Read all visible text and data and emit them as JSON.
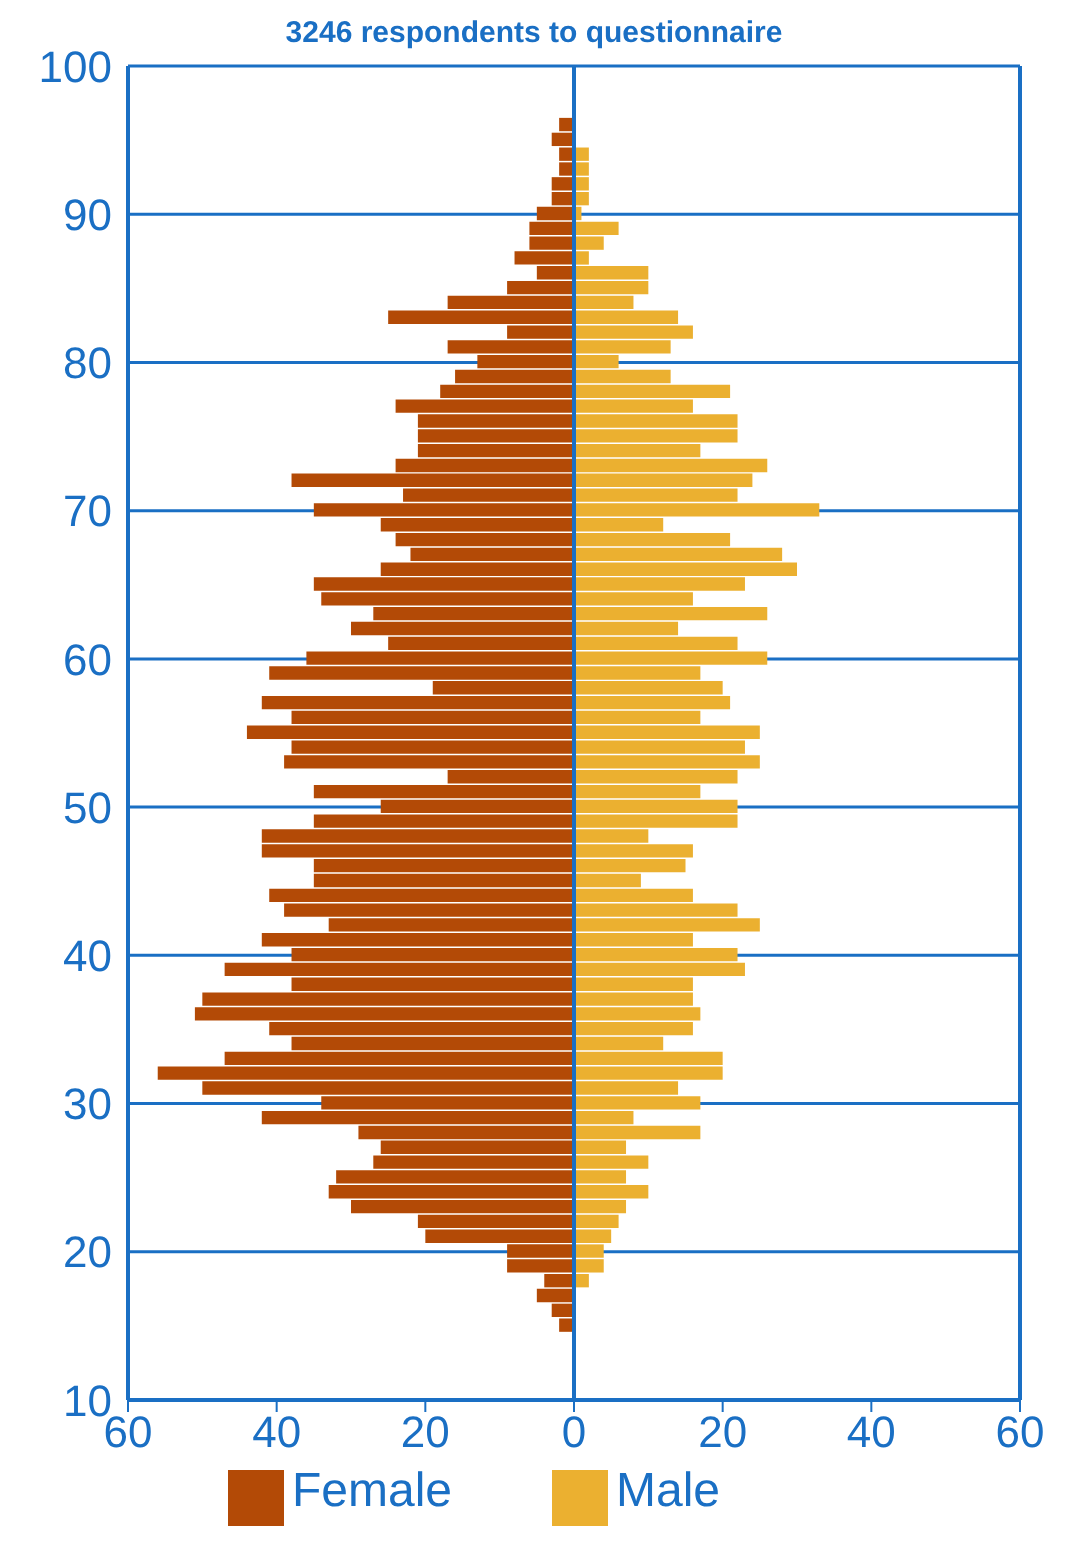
{
  "chart_data": {
    "type": "bar",
    "orientation": "horizontal",
    "title": "3246 respondents to questionnaire",
    "x": [
      15,
      16,
      17,
      18,
      19,
      20,
      21,
      22,
      23,
      24,
      25,
      26,
      27,
      28,
      29,
      30,
      31,
      32,
      33,
      34,
      35,
      36,
      37,
      38,
      39,
      40,
      41,
      42,
      43,
      44,
      45,
      46,
      47,
      48,
      49,
      50,
      51,
      52,
      53,
      54,
      55,
      56,
      57,
      58,
      59,
      60,
      61,
      62,
      63,
      64,
      65,
      66,
      67,
      68,
      69,
      70,
      71,
      72,
      73,
      74,
      75,
      76,
      77,
      78,
      79,
      80,
      81,
      82,
      83,
      84,
      85,
      86,
      87,
      88,
      89,
      90,
      91,
      92,
      93,
      94,
      95,
      96
    ],
    "series": [
      {
        "name": "Female",
        "color": "#b34a06",
        "values": [
          -2,
          -3,
          -5,
          -4,
          -9,
          -9,
          -20,
          -21,
          -30,
          -33,
          -32,
          -27,
          -26,
          -29,
          -42,
          -34,
          -50,
          -56,
          -47,
          -38,
          -41,
          -51,
          -50,
          -38,
          -47,
          -38,
          -42,
          -33,
          -39,
          -41,
          -35,
          -35,
          -42,
          -42,
          -35,
          -26,
          -35,
          -17,
          -39,
          -38,
          -44,
          -38,
          -42,
          -19,
          -41,
          -36,
          -25,
          -30,
          -27,
          -34,
          -35,
          -26,
          -22,
          -24,
          -26,
          -35,
          -23,
          -38,
          -24,
          -21,
          -21,
          -21,
          -24,
          -18,
          -16,
          -13,
          -17,
          -9,
          -25,
          -17,
          -9,
          -5,
          -8,
          -6,
          -6,
          -5,
          -3,
          -3,
          -2,
          -2,
          -3,
          -2
        ]
      },
      {
        "name": "Male",
        "color": "#ebb030",
        "values": [
          null,
          null,
          null,
          2,
          4,
          4,
          5,
          6,
          7,
          10,
          7,
          10,
          7,
          17,
          8,
          17,
          14,
          20,
          20,
          12,
          16,
          17,
          16,
          16,
          23,
          22,
          16,
          25,
          22,
          16,
          9,
          15,
          16,
          10,
          22,
          22,
          17,
          22,
          25,
          23,
          25,
          17,
          21,
          20,
          17,
          26,
          22,
          14,
          26,
          16,
          23,
          30,
          28,
          21,
          12,
          33,
          22,
          24,
          26,
          17,
          22,
          22,
          16,
          21,
          13,
          6,
          13,
          16,
          14,
          8,
          10,
          10,
          2,
          4,
          6,
          1,
          2,
          2,
          2,
          2,
          null,
          null
        ]
      }
    ],
    "xlim": [
      -60,
      60
    ],
    "xticks": [
      {
        "value": -60,
        "label": "60"
      },
      {
        "value": -40,
        "label": "40"
      },
      {
        "value": -20,
        "label": "20"
      },
      0,
      20,
      40,
      60
    ],
    "ylim": [
      10,
      100
    ],
    "yticks": [
      10,
      20,
      30,
      40,
      50,
      60,
      70,
      80,
      90,
      100
    ],
    "stacked": true,
    "grid": "y",
    "legend": "bottom",
    "ref_lines": [
      {
        "axis": "x",
        "value": 0
      }
    ]
  }
}
